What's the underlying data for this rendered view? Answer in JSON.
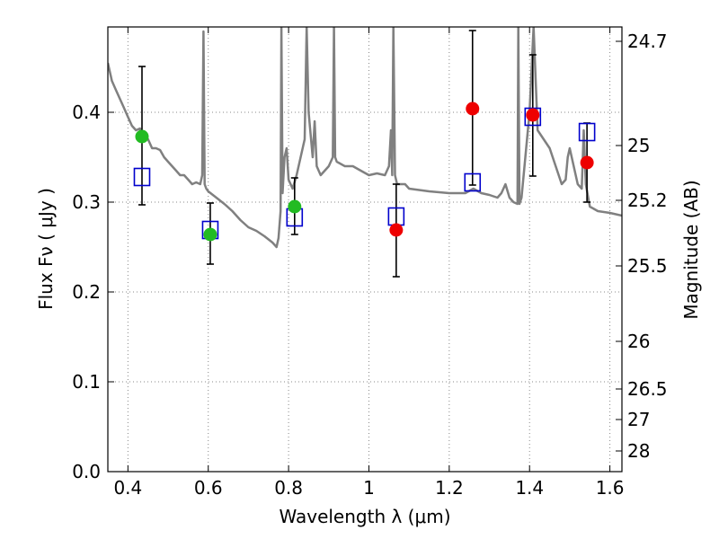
{
  "chart_data": {
    "type": "scatter",
    "xlabel": "Wavelength  λ (μm)",
    "ylabel": "Flux  Fν  ( μJy )",
    "ylabel_right": "Magnitude (AB)",
    "xlim": [
      0.35,
      1.63
    ],
    "ylim": [
      0.0,
      0.495
    ],
    "grid": true,
    "x_ticks": [
      0.4,
      0.6,
      0.8,
      1.0,
      1.2,
      1.4,
      1.6
    ],
    "x_tick_labels": [
      "0.4",
      "0.6",
      "0.8",
      "1",
      "1.2",
      "1.4",
      "1.6"
    ],
    "y_ticks": [
      0.0,
      0.1,
      0.2,
      0.3,
      0.4
    ],
    "y_tick_labels": [
      "0.0",
      "0.1",
      "0.2",
      "0.3",
      "0.4"
    ],
    "right_ticks": [
      {
        "flux": 0.479,
        "label": "24.7"
      },
      {
        "flux": 0.363,
        "label": "25"
      },
      {
        "flux": 0.302,
        "label": "25.2"
      },
      {
        "flux": 0.229,
        "label": "25.5"
      },
      {
        "flux": 0.145,
        "label": "26"
      },
      {
        "flux": 0.092,
        "label": "26.5"
      },
      {
        "flux": 0.058,
        "label": "27"
      },
      {
        "flux": 0.023,
        "label": "28"
      }
    ],
    "colors": {
      "template": "#808080",
      "model_box": "#0000cc",
      "optical": "#22bb22",
      "infrared": "#ee0000",
      "errorbar": "#000000",
      "grid": "#888888"
    },
    "series": [
      {
        "marker": "open-square",
        "x": [
          0.435,
          0.605,
          0.815,
          1.068,
          1.258,
          1.408,
          1.543
        ],
        "y": [
          0.328,
          0.269,
          0.283,
          0.284,
          0.322,
          0.395,
          0.378
        ]
      },
      {
        "marker": "filled-circle",
        "x": [
          0.435,
          0.605,
          0.815
        ],
        "y": [
          0.373,
          0.264,
          0.295
        ],
        "yerr_low": [
          0.297,
          0.231,
          0.264
        ],
        "yerr_high": [
          0.451,
          0.299,
          0.327
        ]
      },
      {
        "marker": "filled-circle",
        "x": [
          1.068,
          1.258,
          1.408,
          1.543
        ],
        "y": [
          0.269,
          0.404,
          0.397,
          0.344
        ],
        "yerr_low": [
          0.217,
          0.319,
          0.329,
          0.3
        ],
        "yerr_high": [
          0.32,
          0.491,
          0.464,
          0.388
        ]
      },
      {
        "marker": "line",
        "x": [
          0.35,
          0.36,
          0.37,
          0.38,
          0.39,
          0.4,
          0.41,
          0.42,
          0.43,
          0.44,
          0.45,
          0.46,
          0.47,
          0.48,
          0.49,
          0.5,
          0.51,
          0.52,
          0.53,
          0.54,
          0.55,
          0.56,
          0.57,
          0.58,
          0.585,
          0.588,
          0.591,
          0.595,
          0.6,
          0.62,
          0.64,
          0.66,
          0.68,
          0.7,
          0.72,
          0.74,
          0.76,
          0.77,
          0.775,
          0.78,
          0.782,
          0.785,
          0.79,
          0.795,
          0.8,
          0.81,
          0.82,
          0.83,
          0.84,
          0.845,
          0.85,
          0.86,
          0.865,
          0.87,
          0.88,
          0.9,
          0.91,
          0.913,
          0.916,
          0.92,
          0.94,
          0.96,
          0.98,
          1.0,
          1.02,
          1.04,
          1.05,
          1.055,
          1.058,
          1.061,
          1.065,
          1.07,
          1.09,
          1.1,
          1.15,
          1.2,
          1.22,
          1.24,
          1.26,
          1.28,
          1.3,
          1.32,
          1.33,
          1.34,
          1.35,
          1.36,
          1.37,
          1.372,
          1.375,
          1.38,
          1.4,
          1.41,
          1.42,
          1.45,
          1.48,
          1.49,
          1.495,
          1.5,
          1.52,
          1.53,
          1.535,
          1.54,
          1.55,
          1.57,
          1.6,
          1.63
        ],
        "y": [
          0.455,
          0.435,
          0.425,
          0.415,
          0.405,
          0.395,
          0.385,
          0.38,
          0.382,
          0.375,
          0.37,
          0.36,
          0.36,
          0.358,
          0.35,
          0.345,
          0.34,
          0.335,
          0.33,
          0.33,
          0.325,
          0.32,
          0.322,
          0.32,
          0.33,
          0.49,
          0.32,
          0.315,
          0.312,
          0.305,
          0.298,
          0.29,
          0.28,
          0.272,
          0.268,
          0.262,
          0.255,
          0.25,
          0.26,
          0.29,
          0.495,
          0.31,
          0.35,
          0.36,
          0.325,
          0.315,
          0.33,
          0.35,
          0.37,
          0.495,
          0.4,
          0.35,
          0.39,
          0.34,
          0.33,
          0.34,
          0.35,
          0.495,
          0.35,
          0.345,
          0.34,
          0.34,
          0.335,
          0.33,
          0.332,
          0.33,
          0.34,
          0.38,
          0.33,
          0.495,
          0.33,
          0.32,
          0.32,
          0.315,
          0.312,
          0.31,
          0.31,
          0.31,
          0.315,
          0.31,
          0.308,
          0.305,
          0.31,
          0.32,
          0.305,
          0.3,
          0.298,
          0.495,
          0.298,
          0.305,
          0.4,
          0.495,
          0.38,
          0.36,
          0.32,
          0.325,
          0.35,
          0.36,
          0.32,
          0.315,
          0.38,
          0.32,
          0.295,
          0.29,
          0.288,
          0.285
        ]
      }
    ]
  }
}
